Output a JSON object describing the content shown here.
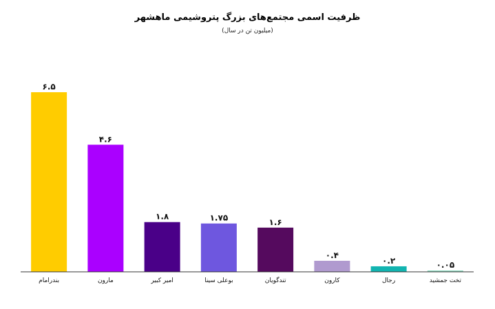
{
  "chart_data": {
    "type": "bar",
    "title": "ظرفیت اسمی مجتمع‌های بزرگ پتروشیمی ماهشهر",
    "subtitle": "(میلیون تن در سال)",
    "categories": [
      "بندرامام",
      "مارون",
      "امیر کبیر",
      "بوعلی سینا",
      "تندگویان",
      "کارون",
      "رجال",
      "تخت جمشید"
    ],
    "values": [
      6.5,
      4.6,
      1.8,
      1.75,
      1.6,
      0.4,
      0.2,
      0.05
    ],
    "value_labels": [
      "۶.۵",
      "۴.۶",
      "۱.۸",
      "۱.۷۵",
      "۱.۶",
      "۰.۴",
      "۰.۲",
      "۰.۰۵"
    ],
    "colors": [
      "#FFCC00",
      "#AA00FF",
      "#4A0088",
      "#6E57DF",
      "#550A5E",
      "#B09ACF",
      "#12B4B0",
      "#8FD8C0"
    ],
    "ylim": [
      0,
      6.5
    ],
    "grid": false,
    "xlabel": "",
    "ylabel": ""
  }
}
